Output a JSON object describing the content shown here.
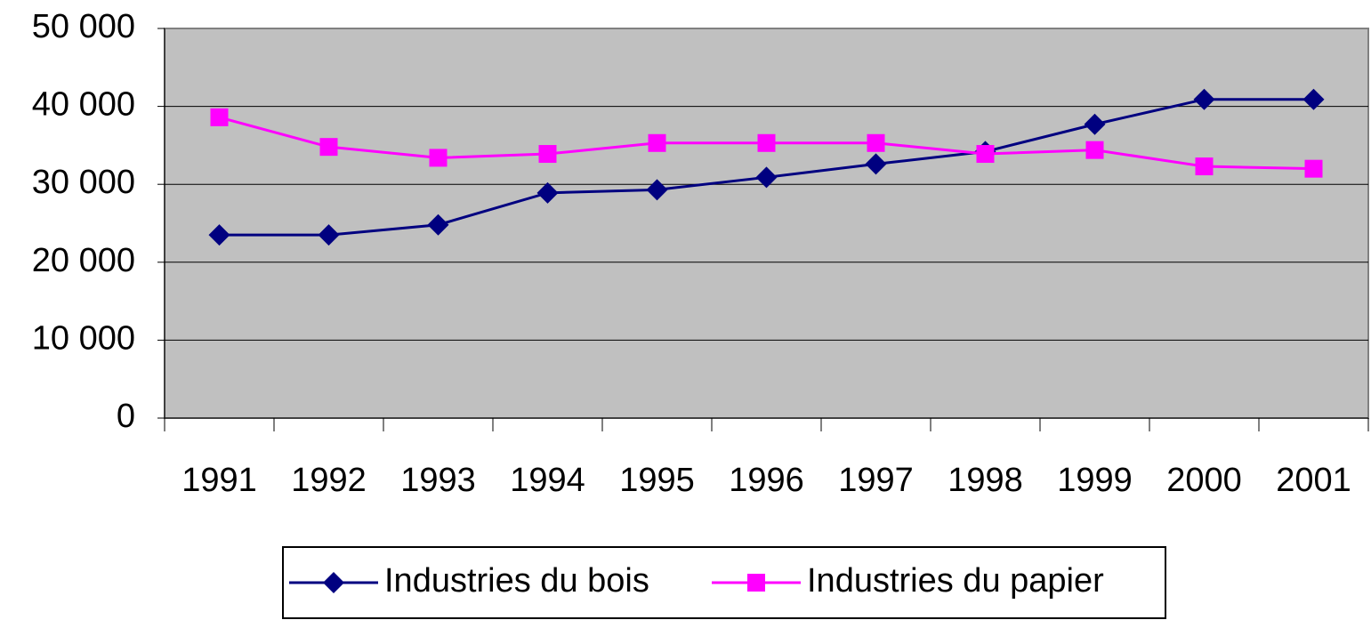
{
  "chart_data": {
    "type": "line",
    "categories": [
      "1991",
      "1992",
      "1993",
      "1994",
      "1995",
      "1996",
      "1997",
      "1998",
      "1999",
      "2000",
      "2001"
    ],
    "series": [
      {
        "name": "Industries du bois",
        "color": "#000080",
        "marker": "diamond",
        "values": [
          23500,
          23500,
          24800,
          28900,
          29300,
          30900,
          32600,
          34200,
          37700,
          40900,
          40900
        ]
      },
      {
        "name": "Industries du papier",
        "color": "#ff00ff",
        "marker": "square",
        "values": [
          38600,
          34800,
          33400,
          33900,
          35300,
          35300,
          35300,
          33900,
          34400,
          32300,
          32000
        ]
      }
    ],
    "ylim": [
      0,
      50000
    ],
    "yticks": [
      0,
      {
        "value": 10000,
        "label": "10 000"
      },
      {
        "value": 20000,
        "label": "20 000"
      },
      {
        "value": 30000,
        "label": "30 000"
      },
      {
        "value": 40000,
        "label": "40 000"
      },
      {
        "value": 50000,
        "label": "50 000"
      }
    ],
    "grid": true,
    "legend": "bottom"
  }
}
